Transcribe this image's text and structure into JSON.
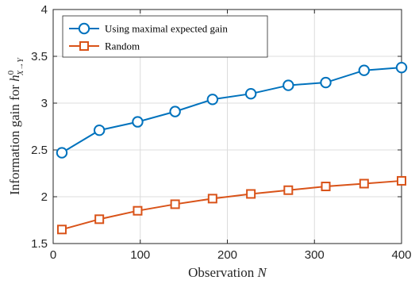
{
  "chart_data": {
    "type": "line",
    "x": [
      10,
      53,
      97,
      140,
      183,
      227,
      270,
      313,
      357,
      400
    ],
    "series": [
      {
        "name": "Using maximal expected gain",
        "values": [
          2.47,
          2.71,
          2.8,
          2.91,
          3.04,
          3.1,
          3.19,
          3.22,
          3.35,
          3.38
        ],
        "color": "#0072BD",
        "marker": "circle"
      },
      {
        "name": "Random",
        "values": [
          1.65,
          1.76,
          1.85,
          1.92,
          1.98,
          2.03,
          2.07,
          2.11,
          2.14,
          2.17
        ],
        "color": "#D95319",
        "marker": "square"
      }
    ],
    "xlabel_text": "Observation ",
    "xlabel_var": "N",
    "ylabel_text": "Information gain for ",
    "ylabel_var": "h",
    "ylabel_sup": "0",
    "ylabel_sub": "X→Y",
    "xlim": [
      0,
      400
    ],
    "ylim": [
      1.5,
      4
    ],
    "xticks": [
      0,
      100,
      200,
      300,
      400
    ],
    "yticks": [
      1.5,
      2,
      2.5,
      3,
      3.5,
      4
    ],
    "xtick_labels": [
      "0",
      "100",
      "200",
      "300",
      "400"
    ],
    "ytick_labels": [
      "1.5",
      "2",
      "2.5",
      "3",
      "3.5",
      "4"
    ],
    "grid": true,
    "legend_position": "top-left"
  }
}
